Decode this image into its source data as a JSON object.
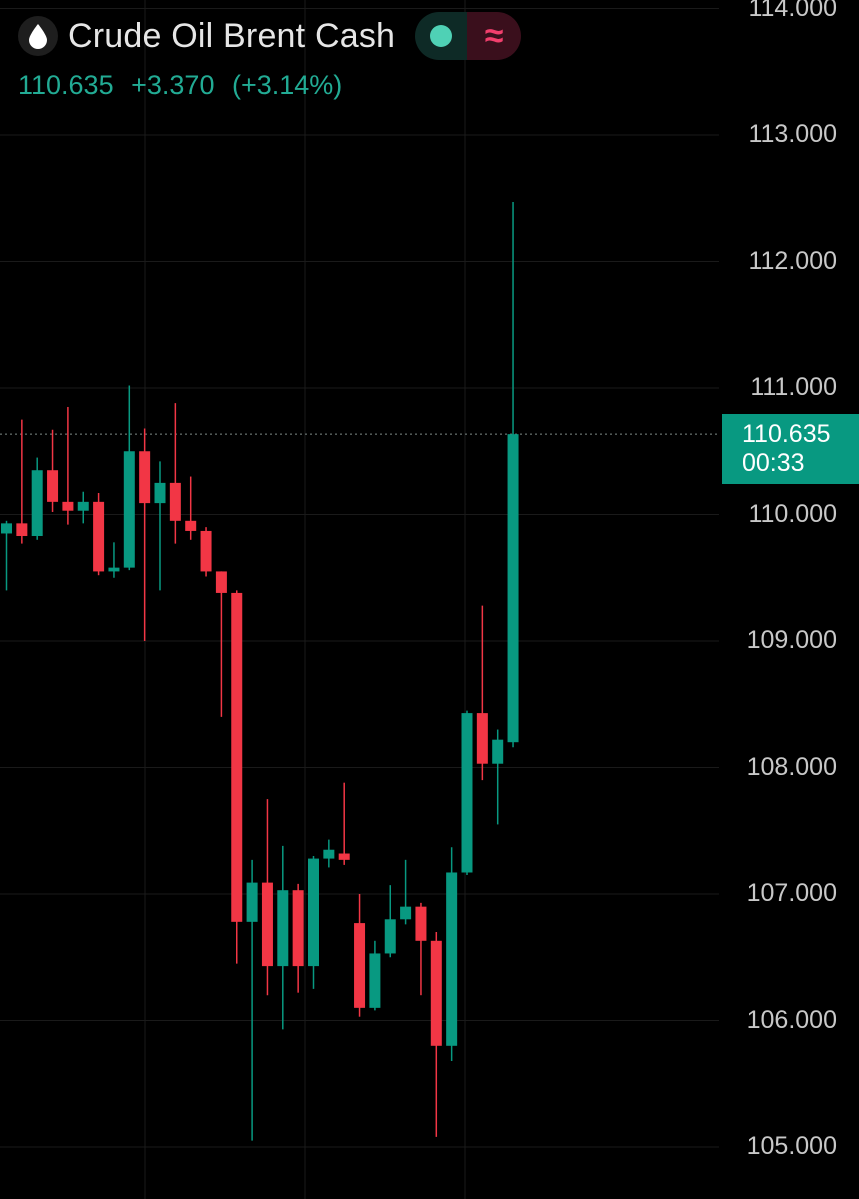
{
  "header": {
    "symbol_icon": "oil-drop-icon",
    "title": "Crude Oil Brent Cash",
    "status_icon": "market-open-dot-icon",
    "indicator_icon": "approx-wave-icon"
  },
  "quote": {
    "last": "110.635",
    "change": "+3.370",
    "change_pct": "(+3.14%)"
  },
  "price_tag": {
    "price": "110.635",
    "countdown": "00:33"
  },
  "colors": {
    "background": "#000000",
    "up": "#089981",
    "down": "#f23645",
    "grid": "#1a1a1a",
    "quote_text": "#22ab94"
  },
  "chart_data": {
    "type": "candlestick",
    "ylim": [
      104.85,
      114.05
    ],
    "y_ticks": [
      "105.000",
      "106.000",
      "107.000",
      "108.000",
      "109.000",
      "110.000",
      "111.000",
      "112.000",
      "113.000",
      "114.000"
    ],
    "grid": true,
    "last_price": 110.635,
    "candles": [
      {
        "o": 109.85,
        "h": 109.95,
        "l": 109.4,
        "c": 109.93
      },
      {
        "o": 109.93,
        "h": 110.75,
        "l": 109.77,
        "c": 109.83
      },
      {
        "o": 109.83,
        "h": 110.45,
        "l": 109.8,
        "c": 110.35
      },
      {
        "o": 110.35,
        "h": 110.67,
        "l": 110.02,
        "c": 110.1
      },
      {
        "o": 110.1,
        "h": 110.85,
        "l": 109.92,
        "c": 110.03
      },
      {
        "o": 110.03,
        "h": 110.18,
        "l": 109.93,
        "c": 110.1
      },
      {
        "o": 110.1,
        "h": 110.17,
        "l": 109.52,
        "c": 109.55
      },
      {
        "o": 109.55,
        "h": 109.78,
        "l": 109.5,
        "c": 109.58
      },
      {
        "o": 109.58,
        "h": 111.02,
        "l": 109.56,
        "c": 110.5
      },
      {
        "o": 110.5,
        "h": 110.68,
        "l": 109.0,
        "c": 110.09
      },
      {
        "o": 110.09,
        "h": 110.42,
        "l": 109.4,
        "c": 110.25
      },
      {
        "o": 110.25,
        "h": 110.88,
        "l": 109.77,
        "c": 109.95
      },
      {
        "o": 109.95,
        "h": 110.3,
        "l": 109.8,
        "c": 109.87
      },
      {
        "o": 109.87,
        "h": 109.9,
        "l": 109.51,
        "c": 109.55
      },
      {
        "o": 109.55,
        "h": 109.55,
        "l": 108.4,
        "c": 109.38
      },
      {
        "o": 109.38,
        "h": 109.4,
        "l": 106.45,
        "c": 106.78
      },
      {
        "o": 106.78,
        "h": 107.27,
        "l": 105.05,
        "c": 107.09
      },
      {
        "o": 107.09,
        "h": 107.75,
        "l": 106.2,
        "c": 106.43
      },
      {
        "o": 106.43,
        "h": 107.38,
        "l": 105.93,
        "c": 107.03
      },
      {
        "o": 107.03,
        "h": 107.08,
        "l": 106.22,
        "c": 106.43
      },
      {
        "o": 106.43,
        "h": 107.3,
        "l": 106.25,
        "c": 107.28
      },
      {
        "o": 107.28,
        "h": 107.43,
        "l": 107.21,
        "c": 107.35
      },
      {
        "o": 107.32,
        "h": 107.88,
        "l": 107.23,
        "c": 107.27
      },
      {
        "o": 106.77,
        "h": 107.0,
        "l": 106.03,
        "c": 106.1
      },
      {
        "o": 106.1,
        "h": 106.63,
        "l": 106.08,
        "c": 106.53
      },
      {
        "o": 106.53,
        "h": 107.07,
        "l": 106.5,
        "c": 106.8
      },
      {
        "o": 106.8,
        "h": 107.27,
        "l": 106.76,
        "c": 106.9
      },
      {
        "o": 106.9,
        "h": 106.93,
        "l": 106.2,
        "c": 106.63
      },
      {
        "o": 106.63,
        "h": 106.7,
        "l": 105.08,
        "c": 105.8
      },
      {
        "o": 105.8,
        "h": 107.37,
        "l": 105.68,
        "c": 107.17
      },
      {
        "o": 107.17,
        "h": 108.45,
        "l": 107.15,
        "c": 108.43
      },
      {
        "o": 108.43,
        "h": 109.28,
        "l": 107.9,
        "c": 108.03
      },
      {
        "o": 108.03,
        "h": 108.3,
        "l": 107.55,
        "c": 108.22
      },
      {
        "o": 108.2,
        "h": 112.47,
        "l": 108.16,
        "c": 110.635
      }
    ]
  }
}
